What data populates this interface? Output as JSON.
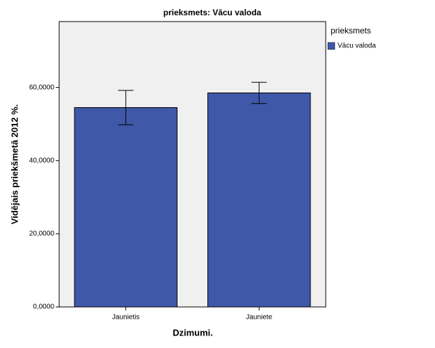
{
  "chart_data": {
    "type": "bar",
    "title": "prieksmets: Vācu valoda",
    "x_label": "Dzimumi.",
    "y_label": "Vidējais priekšmetā 2012 %.",
    "legend_title": "prieksmets",
    "categories": [
      "Jaunietis",
      "Jauniete"
    ],
    "series": [
      {
        "name": "Vācu valoda",
        "color": "#3f58a8",
        "values": [
          54.5,
          58.5
        ],
        "errors": [
          4.7,
          2.9
        ]
      }
    ],
    "ylim": [
      0,
      78
    ],
    "yticks": [
      {
        "value": 0,
        "label": "0,0000"
      },
      {
        "value": 20,
        "label": "20,0000"
      },
      {
        "value": 40,
        "label": "40,0000"
      },
      {
        "value": 60,
        "label": "60,0000"
      }
    ]
  }
}
